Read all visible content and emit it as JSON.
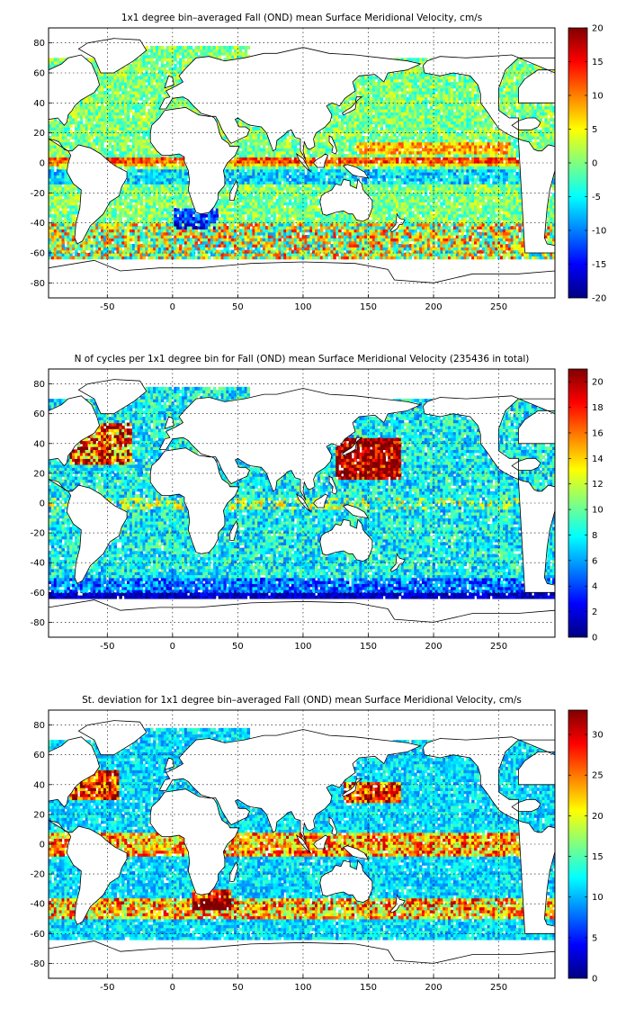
{
  "colors": {
    "land": "#ffffff",
    "frame": "#000000",
    "grid": "#000000",
    "colormap": "jet"
  },
  "chart_data": [
    {
      "type": "heatmap",
      "title": "1x1 degree bin–averaged Fall (OND) mean Surface Meridional Velocity, cm/s",
      "xlabel": "",
      "ylabel": "",
      "xlim": [
        -95,
        293
      ],
      "ylim": [
        -90,
        90
      ],
      "x_ticks": [
        -50,
        0,
        50,
        100,
        150,
        200,
        250
      ],
      "y_ticks": [
        80,
        60,
        40,
        20,
        0,
        -20,
        -40,
        -60,
        -80
      ],
      "grid": true,
      "colorbar": {
        "min": -20,
        "max": 20,
        "ticks": [
          20,
          15,
          10,
          5,
          0,
          -5,
          -10,
          -15,
          -20
        ],
        "placement": "right"
      },
      "pattern": "meridional-velocity"
    },
    {
      "type": "heatmap",
      "title": "N of cycles per 1x1 degree bin for Fall (OND) mean Surface Meridional Velocity (235436 in total)",
      "xlabel": "",
      "ylabel": "",
      "xlim": [
        -95,
        293
      ],
      "ylim": [
        -90,
        90
      ],
      "x_ticks": [
        -50,
        0,
        50,
        100,
        150,
        200,
        250
      ],
      "y_ticks": [
        80,
        60,
        40,
        20,
        0,
        -20,
        -40,
        -60,
        -80
      ],
      "grid": true,
      "colorbar": {
        "min": 0,
        "max": 21,
        "ticks": [
          20,
          18,
          16,
          14,
          12,
          10,
          8,
          6,
          4,
          2,
          0
        ],
        "placement": "right"
      },
      "pattern": "cycle-count"
    },
    {
      "type": "heatmap",
      "title": "St. deviation for 1x1 degree bin–averaged Fall (OND) mean Surface Meridional Velocity, cm/s",
      "xlabel": "",
      "ylabel": "",
      "xlim": [
        -95,
        293
      ],
      "ylim": [
        -90,
        90
      ],
      "x_ticks": [
        -50,
        0,
        50,
        100,
        150,
        200,
        250
      ],
      "y_ticks": [
        80,
        60,
        40,
        20,
        0,
        -20,
        -40,
        -60,
        -80
      ],
      "grid": true,
      "colorbar": {
        "min": 0,
        "max": 33,
        "ticks": [
          30,
          25,
          20,
          15,
          10,
          5,
          0
        ],
        "placement": "right"
      },
      "pattern": "standard-deviation"
    }
  ]
}
